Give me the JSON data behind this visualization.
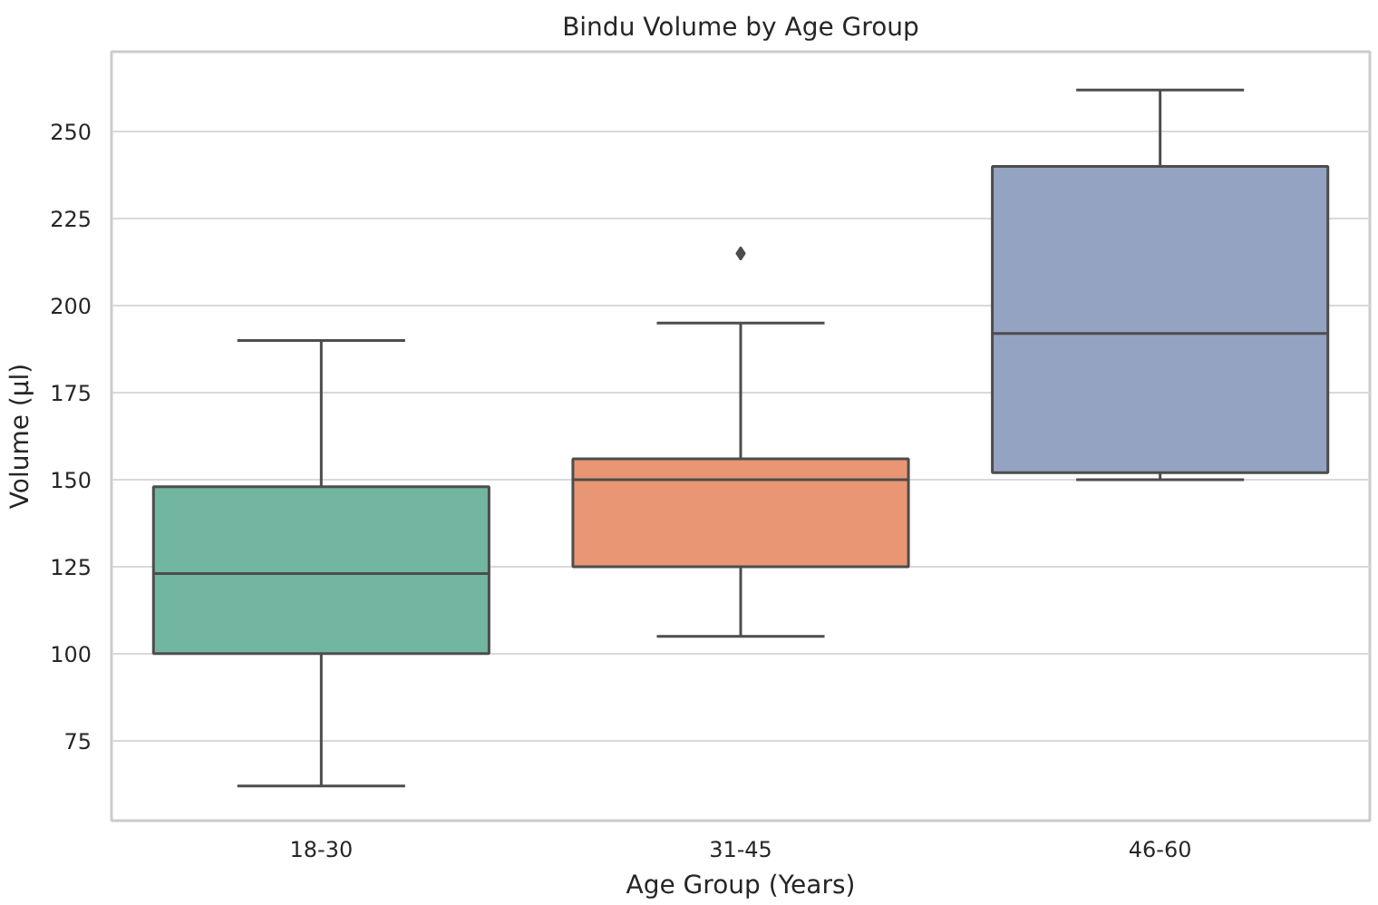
{
  "chart_data": {
    "type": "box",
    "title": "Bindu Volume by Age Group",
    "xlabel": "Age Group (Years)",
    "ylabel": "Volume (µl)",
    "categories": [
      "18-30",
      "31-45",
      "46-60"
    ],
    "colors": [
      "#72b6a1",
      "#e99675",
      "#95a3c3"
    ],
    "boxes": [
      {
        "low": 62,
        "q1": 100,
        "median": 123,
        "q3": 148,
        "high": 190
      },
      {
        "low": 105,
        "q1": 125,
        "median": 150,
        "q3": 156,
        "high": 195,
        "outliers": [
          215
        ]
      },
      {
        "low": 150,
        "q1": 152,
        "median": 192,
        "q3": 240,
        "high": 262
      }
    ],
    "ylim": [
      52,
      273
    ],
    "yticks": [
      75,
      100,
      125,
      150,
      175,
      200,
      225,
      250
    ],
    "grid": "y",
    "marker": "diamond"
  }
}
